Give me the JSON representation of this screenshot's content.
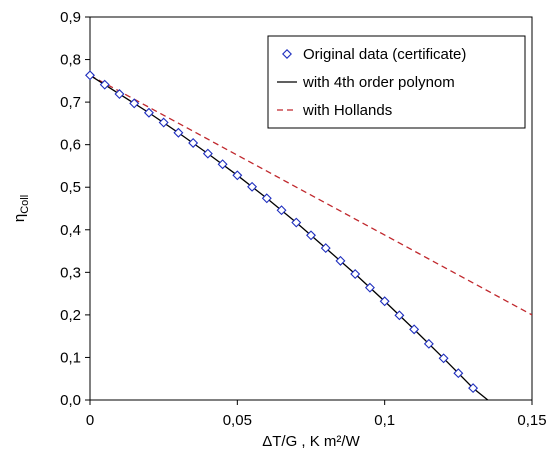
{
  "chart_data": {
    "type": "line",
    "title": "",
    "xlabel": "ΔT/G , K m²/W",
    "ylabel_main": "η",
    "ylabel_sub": "Coll",
    "xlim": [
      0,
      0.15
    ],
    "ylim": [
      0,
      0.9
    ],
    "x_ticks": [
      "0",
      "0,05",
      "0,1",
      "0,15"
    ],
    "x_tick_values": [
      0,
      0.05,
      0.1,
      0.15
    ],
    "y_ticks": [
      "0,0",
      "0,1",
      "0,2",
      "0,3",
      "0,4",
      "0,5",
      "0,6",
      "0,7",
      "0,8",
      "0,9"
    ],
    "y_tick_values": [
      0,
      0.1,
      0.2,
      0.3,
      0.4,
      0.5,
      0.6,
      0.7,
      0.8,
      0.9
    ],
    "grid": "none",
    "legend_placement": "top-right",
    "series": [
      {
        "name": "Original data (certificate)",
        "style": "markers",
        "marker": "diamond",
        "color": "#1f2fbf",
        "x": [
          0,
          0.005,
          0.01,
          0.015,
          0.02,
          0.025,
          0.03,
          0.035,
          0.04,
          0.045,
          0.05,
          0.055,
          0.06,
          0.065,
          0.07,
          0.075,
          0.08,
          0.085,
          0.09,
          0.095,
          0.1,
          0.105,
          0.11,
          0.115,
          0.12,
          0.125,
          0.13
        ],
        "y": [
          0.763,
          0.741,
          0.719,
          0.697,
          0.675,
          0.652,
          0.628,
          0.604,
          0.579,
          0.554,
          0.528,
          0.501,
          0.474,
          0.446,
          0.417,
          0.387,
          0.357,
          0.327,
          0.296,
          0.264,
          0.232,
          0.199,
          0.166,
          0.132,
          0.098,
          0.063,
          0.028
        ]
      },
      {
        "name": "with 4th order polynom",
        "style": "solid",
        "color": "#000000",
        "x": [
          0,
          0.01,
          0.02,
          0.03,
          0.04,
          0.05,
          0.06,
          0.07,
          0.08,
          0.09,
          0.1,
          0.11,
          0.12,
          0.13,
          0.135
        ],
        "y": [
          0.763,
          0.719,
          0.675,
          0.628,
          0.579,
          0.528,
          0.474,
          0.417,
          0.357,
          0.296,
          0.232,
          0.166,
          0.098,
          0.028,
          0.0
        ]
      },
      {
        "name": "with Hollands",
        "style": "dashed",
        "color": "#c0282d",
        "x": [
          0,
          0.15
        ],
        "y": [
          0.763,
          0.2
        ]
      }
    ]
  }
}
